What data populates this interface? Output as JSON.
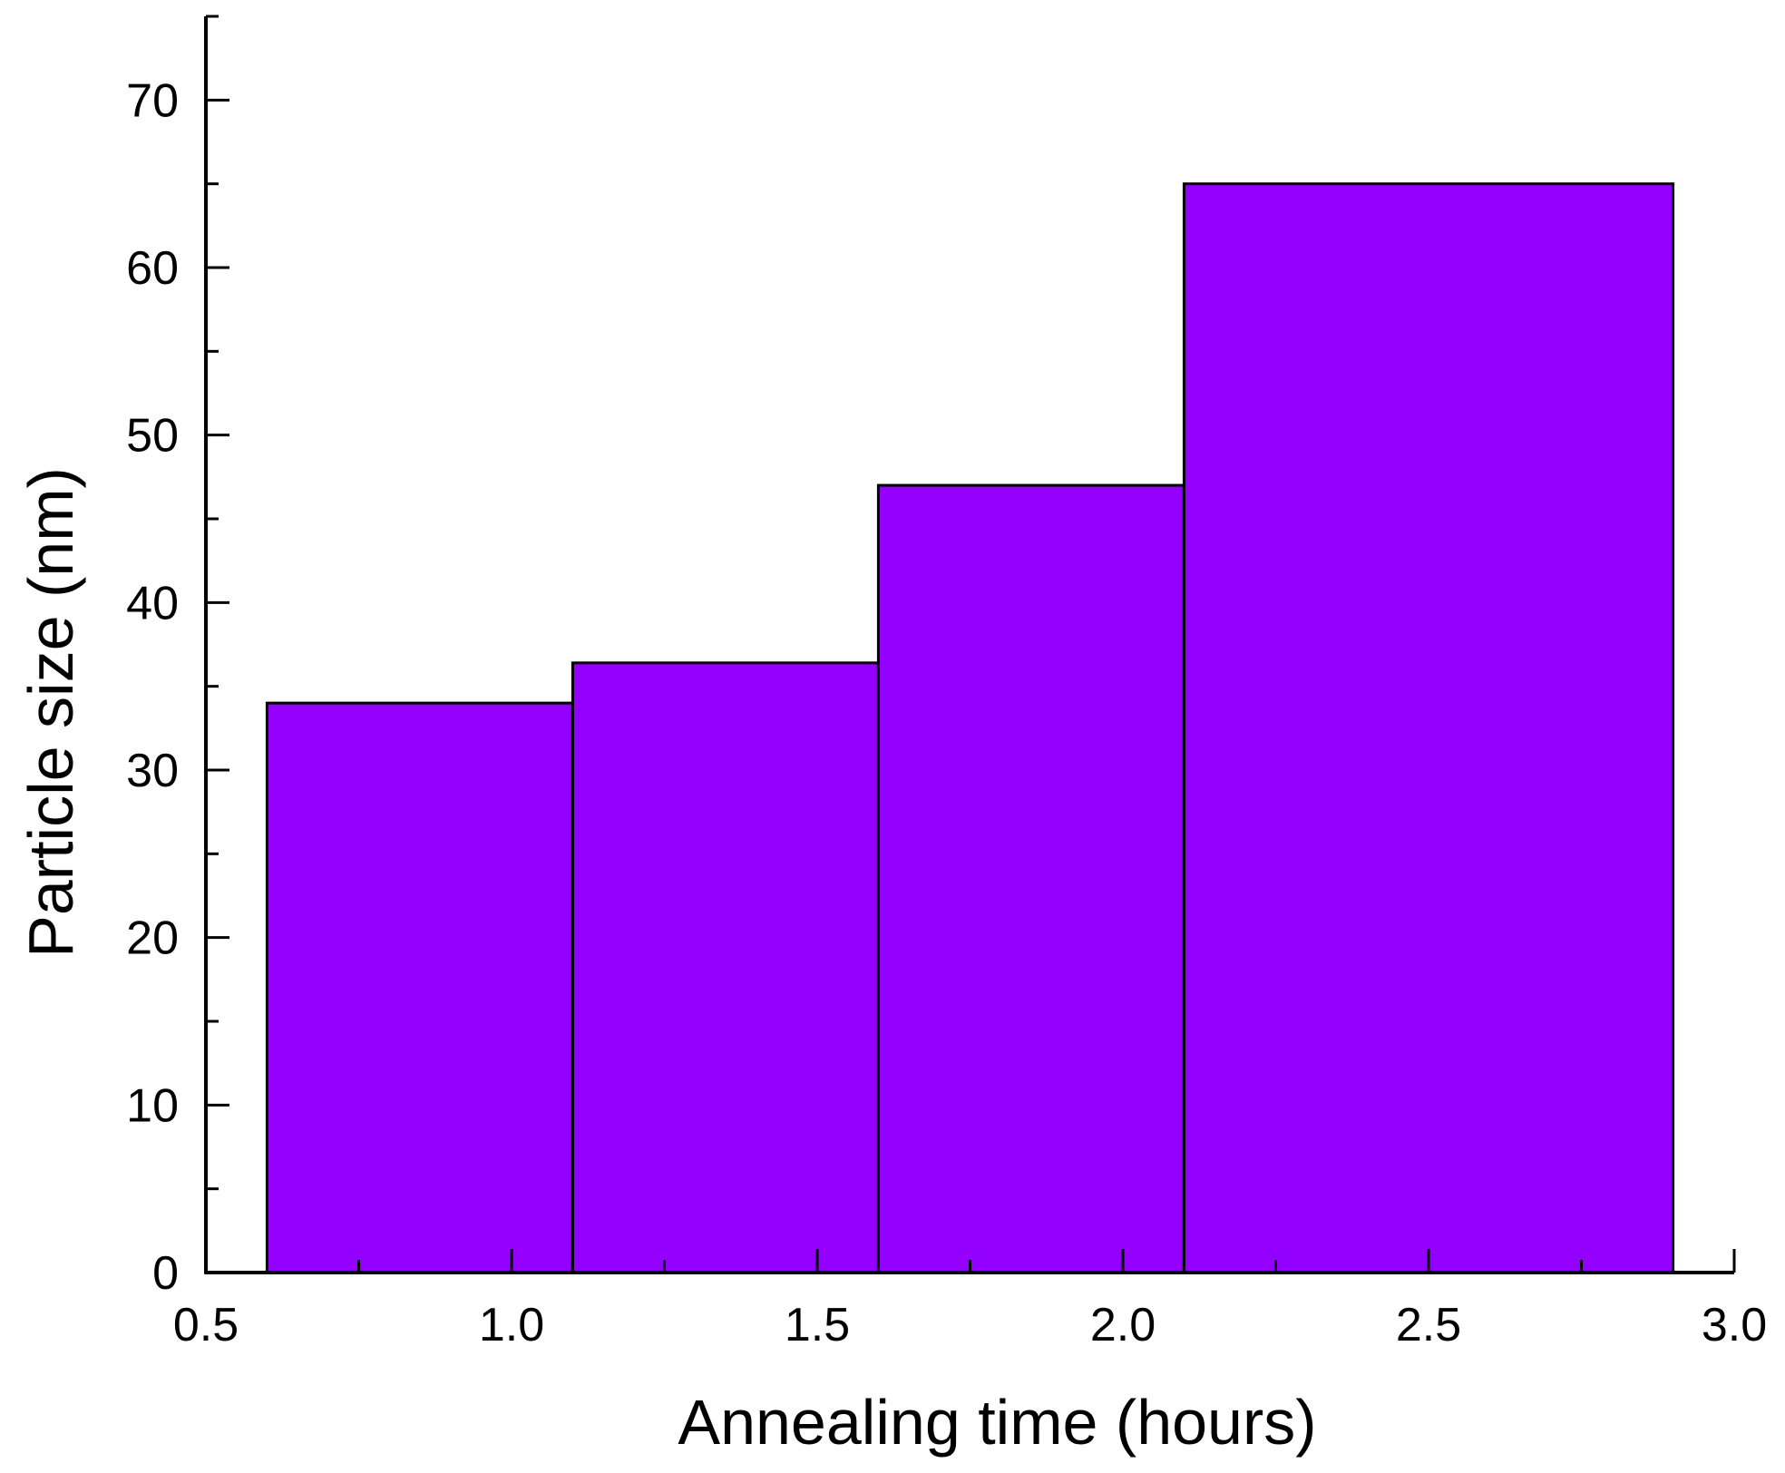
{
  "chart_data": {
    "type": "bar",
    "title": "",
    "xlabel": "Annealing time (hours)",
    "ylabel": "Particle size (nm)",
    "xlim": [
      0.5,
      3.0
    ],
    "ylim": [
      0,
      75
    ],
    "xticks": [
      "0.5",
      "1.0",
      "1.5",
      "2.0",
      "2.5",
      "3.0"
    ],
    "xtick_values": [
      0.5,
      1.0,
      1.5,
      2.0,
      2.5,
      3.0
    ],
    "yticks": [
      "0",
      "10",
      "20",
      "30",
      "40",
      "50",
      "60",
      "70"
    ],
    "ytick_values": [
      0,
      10,
      20,
      30,
      40,
      50,
      60,
      70
    ],
    "grid": false,
    "legend": "none",
    "bars": [
      {
        "x_start": 0.6,
        "x_end": 1.1,
        "value": 34.0
      },
      {
        "x_start": 1.1,
        "x_end": 1.6,
        "value": 36.4
      },
      {
        "x_start": 1.6,
        "x_end": 2.1,
        "value": 47.0
      },
      {
        "x_start": 2.1,
        "x_end": 2.9,
        "value": 65.0
      }
    ],
    "colors": {
      "bar_fill": "#9400FF",
      "bar_stroke": "#000000",
      "axis": "#000000"
    }
  }
}
